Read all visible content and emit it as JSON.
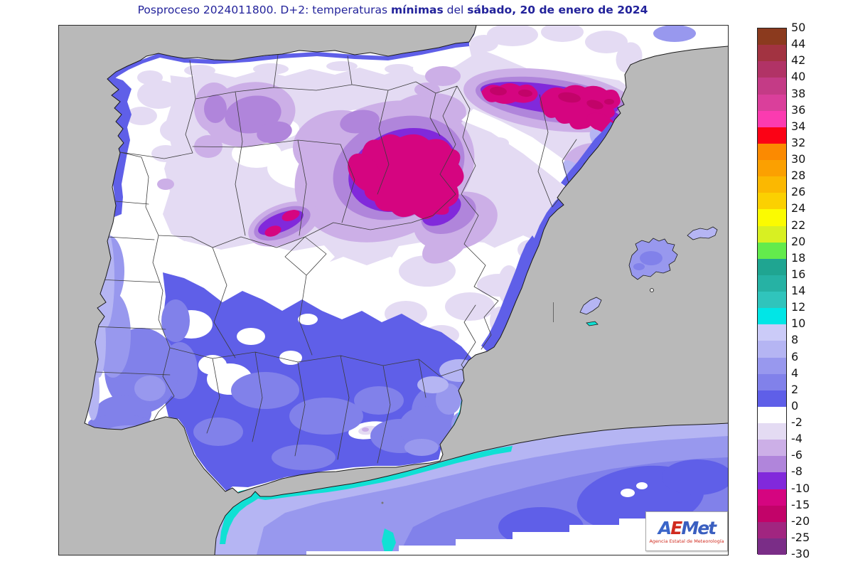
{
  "title": {
    "part1": "Posproceso 2024011800. D+2: temperaturas ",
    "bold1": "mínimas",
    "part2": " del ",
    "bold2": "sábado, 20 de enero de 2024"
  },
  "colorbar": {
    "labels": [
      "50",
      "44",
      "42",
      "40",
      "38",
      "36",
      "34",
      "32",
      "30",
      "28",
      "26",
      "24",
      "22",
      "20",
      "18",
      "16",
      "14",
      "12",
      "10",
      "8",
      "6",
      "4",
      "2",
      "0",
      "-2",
      "-4",
      "-6",
      "-8",
      "-10",
      "-15",
      "-20",
      "-25",
      "-30"
    ],
    "colors": [
      "#8b3a1e",
      "#a23341",
      "#b13366",
      "#c43b86",
      "#da3f9b",
      "#fb3bb0",
      "#fb0215",
      "#fb8a01",
      "#fba001",
      "#fbb801",
      "#fbd001",
      "#fbfb01",
      "#d8f022",
      "#63eb4c",
      "#1fa591",
      "#26b2a4",
      "#30c4bc",
      "#01e6e6",
      "#cbcbf8",
      "#b5b5f3",
      "#9898ee",
      "#8181ea",
      "#5f5fe8",
      "#ffffff",
      "#e4dbf3",
      "#ccafe7",
      "#b085db",
      "#8129db",
      "#d50580",
      "#c20369",
      "#a12580",
      "#7a2d87"
    ]
  },
  "palette": {
    "sea": "#b9b9b9",
    "land": "#ffffff",
    "coast": "#1a1a1a",
    "border": "#3c3c3c",
    "m2": "#e4dbf3",
    "m4": "#ccafe7",
    "m6": "#b085db",
    "m8": "#8129db",
    "m10": "#d50580",
    "m15": "#c20369",
    "p0": "#5f5fe8",
    "p2": "#8181ea",
    "p4": "#9898ee",
    "p6": "#b5b5f3",
    "p8": "#cbcbf8",
    "cyan": "#10e0d4"
  },
  "logo": {
    "a": "A",
    "e": "E",
    "met": "Met",
    "subtitle": "Agencia Estatal de Meteorología"
  }
}
